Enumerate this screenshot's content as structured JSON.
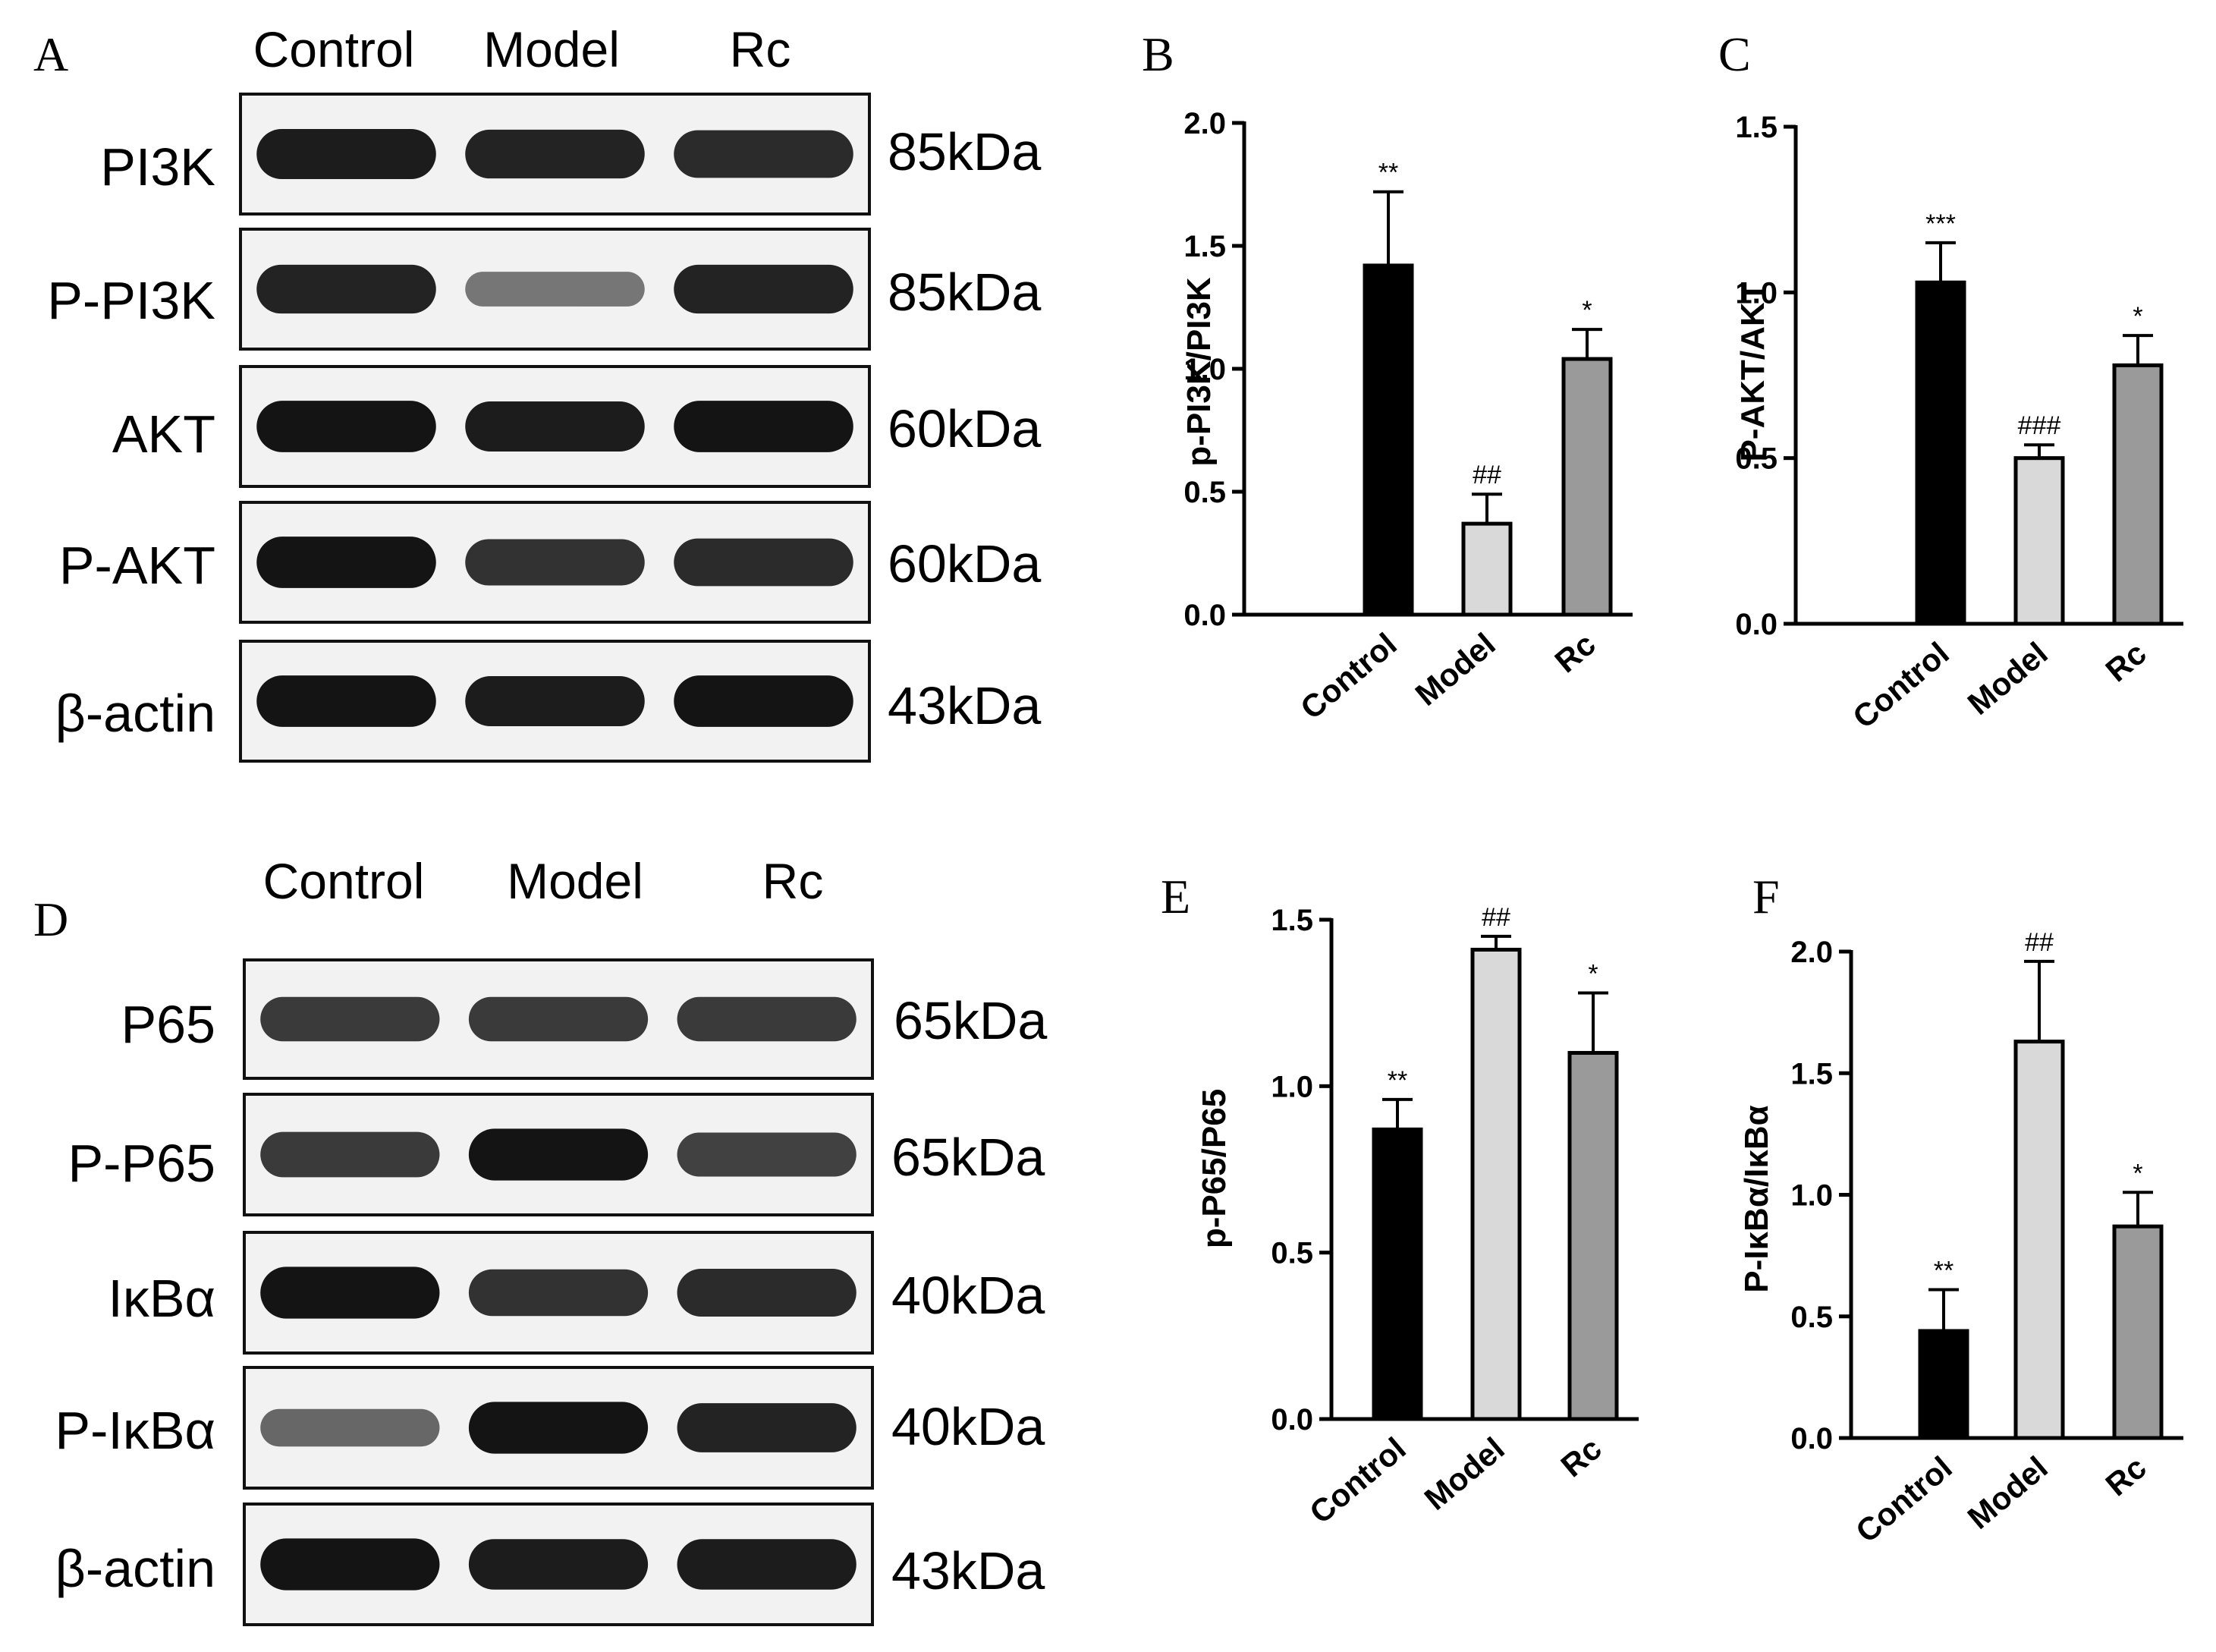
{
  "panels": {
    "A": "A",
    "B": "B",
    "C": "C",
    "D": "D",
    "E": "E",
    "F": "F"
  },
  "blot_top": {
    "lanes": [
      "Control",
      "Model",
      "Rc"
    ],
    "rows": [
      {
        "label": "PI3K",
        "kda": "85kDa",
        "intensity": [
          0.95,
          0.9,
          0.85
        ]
      },
      {
        "label": "P-PI3K",
        "kda": "85kDa",
        "intensity": [
          0.9,
          0.35,
          0.9
        ]
      },
      {
        "label": "AKT",
        "kda": "60kDa",
        "intensity": [
          1.0,
          0.95,
          1.0
        ]
      },
      {
        "label": "P-AKT",
        "kda": "60kDa",
        "intensity": [
          1.0,
          0.8,
          0.85
        ]
      },
      {
        "label": "β-actin",
        "kda": "43kDa",
        "intensity": [
          1.0,
          0.95,
          1.0
        ]
      }
    ]
  },
  "blot_bottom": {
    "lanes": [
      "Control",
      "Model",
      "Rc"
    ],
    "rows": [
      {
        "label": "P65",
        "kda": "65kDa",
        "intensity": [
          0.75,
          0.75,
          0.75
        ]
      },
      {
        "label": "P-P65",
        "kda": "65kDa",
        "intensity": [
          0.75,
          1.0,
          0.7
        ]
      },
      {
        "label": "IκBα",
        "kda": "40kDa",
        "intensity": [
          1.0,
          0.8,
          0.85
        ]
      },
      {
        "label": "P-IκBα",
        "kda": "40kDa",
        "intensity": [
          0.45,
          1.0,
          0.9
        ]
      },
      {
        "label": "β-actin",
        "kda": "43kDa",
        "intensity": [
          1.0,
          0.95,
          0.95
        ]
      }
    ]
  },
  "colors": {
    "Control": "#000000",
    "Model": "#d9d9d9",
    "Rc": "#9a9a9a"
  },
  "chart_data": [
    {
      "panel": "B",
      "type": "bar",
      "categories": [
        "Control",
        "Model",
        "Rc"
      ],
      "values": [
        1.42,
        0.37,
        1.04
      ],
      "errors": [
        0.3,
        0.12,
        0.12
      ],
      "annotations": [
        "**",
        "##",
        "*"
      ],
      "ylabel": "p-PI3K/PI3K",
      "ylim": [
        0,
        2.0
      ],
      "yticks": [
        "0.0",
        "0.5",
        "1.0",
        "1.5",
        "2.0"
      ]
    },
    {
      "panel": "C",
      "type": "bar",
      "categories": [
        "Control",
        "Model",
        "Rc"
      ],
      "values": [
        1.03,
        0.5,
        0.78
      ],
      "errors": [
        0.12,
        0.04,
        0.09
      ],
      "annotations": [
        "***",
        "###",
        "*"
      ],
      "ylabel": "P-AKT/AKT",
      "ylim": [
        0,
        1.5
      ],
      "yticks": [
        "0.0",
        "0.5",
        "1.0",
        "1.5"
      ]
    },
    {
      "panel": "E",
      "type": "bar",
      "categories": [
        "Control",
        "Model",
        "Rc"
      ],
      "values": [
        0.87,
        1.41,
        1.1
      ],
      "errors": [
        0.09,
        0.04,
        0.18
      ],
      "annotations": [
        "**",
        "##",
        "*"
      ],
      "ylabel": "p-P65/P65",
      "ylim": [
        0,
        1.5
      ],
      "yticks": [
        "0.0",
        "0.5",
        "1.0",
        "1.5"
      ]
    },
    {
      "panel": "F",
      "type": "bar",
      "categories": [
        "Control",
        "Model",
        "Rc"
      ],
      "values": [
        0.44,
        1.63,
        0.87
      ],
      "errors": [
        0.17,
        0.33,
        0.14
      ],
      "annotations": [
        "**",
        "##",
        "*"
      ],
      "ylabel": "P-IκBα/IκBα",
      "ylim": [
        0,
        2.0
      ],
      "yticks": [
        "0.0",
        "0.5",
        "1.0",
        "1.5",
        "2.0"
      ]
    }
  ]
}
